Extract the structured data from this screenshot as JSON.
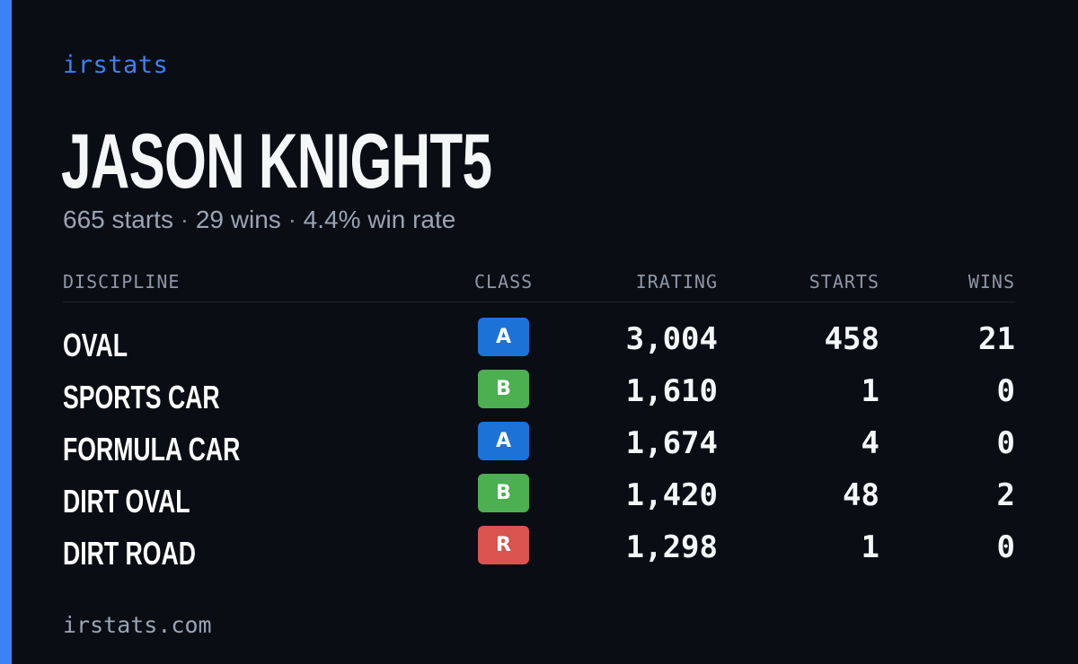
{
  "colors": {
    "accent": "#3b82f6",
    "background": "#0a0d14",
    "class_a": "#1d72d8",
    "class_b": "#4caf50",
    "class_r": "#d9534f"
  },
  "brand": {
    "name": "irstats"
  },
  "driver": {
    "name": "JASON KNIGHT5",
    "starts": "665 starts",
    "wins": "29 wins",
    "win_rate": "4.4% win rate",
    "separator": "·"
  },
  "table": {
    "headers": {
      "discipline": "DISCIPLINE",
      "class": "CLASS",
      "irating": "IRATING",
      "starts": "STARTS",
      "wins": "WINS"
    },
    "rows": [
      {
        "discipline": "OVAL",
        "class": "A",
        "irating": "3,004",
        "starts": "458",
        "wins": "21"
      },
      {
        "discipline": "SPORTS CAR",
        "class": "B",
        "irating": "1,610",
        "starts": "1",
        "wins": "0"
      },
      {
        "discipline": "FORMULA CAR",
        "class": "A",
        "irating": "1,674",
        "starts": "4",
        "wins": "0"
      },
      {
        "discipline": "DIRT OVAL",
        "class": "B",
        "irating": "1,420",
        "starts": "48",
        "wins": "2"
      },
      {
        "discipline": "DIRT ROAD",
        "class": "R",
        "irating": "1,298",
        "starts": "1",
        "wins": "0"
      }
    ]
  },
  "footer": {
    "url": "irstats.com"
  }
}
